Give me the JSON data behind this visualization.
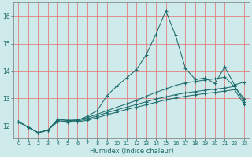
{
  "xlabel": "Humidex (Indice chaleur)",
  "bg_color": "#ceeaea",
  "line_color": "#1e6b6b",
  "grid_color": "#e08080",
  "xlim": [
    -0.5,
    23.5
  ],
  "ylim": [
    11.55,
    16.5
  ],
  "yticks": [
    12,
    13,
    14,
    15,
    16
  ],
  "xticks": [
    0,
    1,
    2,
    3,
    4,
    5,
    6,
    7,
    8,
    9,
    10,
    11,
    12,
    13,
    14,
    15,
    16,
    17,
    18,
    19,
    20,
    21,
    22,
    23
  ],
  "series1": [
    12.15,
    11.95,
    11.75,
    11.85,
    12.25,
    12.2,
    12.2,
    12.35,
    12.55,
    13.1,
    13.45,
    13.75,
    14.05,
    14.6,
    15.35,
    16.2,
    15.3,
    14.1,
    13.7,
    13.75,
    13.55,
    14.15,
    13.5,
    13.6
  ],
  "series2": [
    12.15,
    11.95,
    11.75,
    11.85,
    12.22,
    12.2,
    12.22,
    12.3,
    12.42,
    12.55,
    12.68,
    12.8,
    12.93,
    13.08,
    13.22,
    13.35,
    13.48,
    13.57,
    13.62,
    13.68,
    13.72,
    13.78,
    13.43,
    12.98
  ],
  "series3": [
    12.15,
    11.95,
    11.75,
    11.85,
    12.18,
    12.16,
    12.18,
    12.25,
    12.36,
    12.48,
    12.58,
    12.68,
    12.78,
    12.88,
    12.98,
    13.06,
    13.14,
    13.2,
    13.25,
    13.3,
    13.34,
    13.38,
    13.44,
    12.88
  ],
  "series4": [
    12.15,
    11.95,
    11.75,
    11.85,
    12.15,
    12.13,
    12.15,
    12.2,
    12.3,
    12.4,
    12.5,
    12.6,
    12.68,
    12.77,
    12.86,
    12.95,
    13.02,
    13.08,
    13.13,
    13.18,
    13.22,
    13.27,
    13.32,
    12.78
  ]
}
